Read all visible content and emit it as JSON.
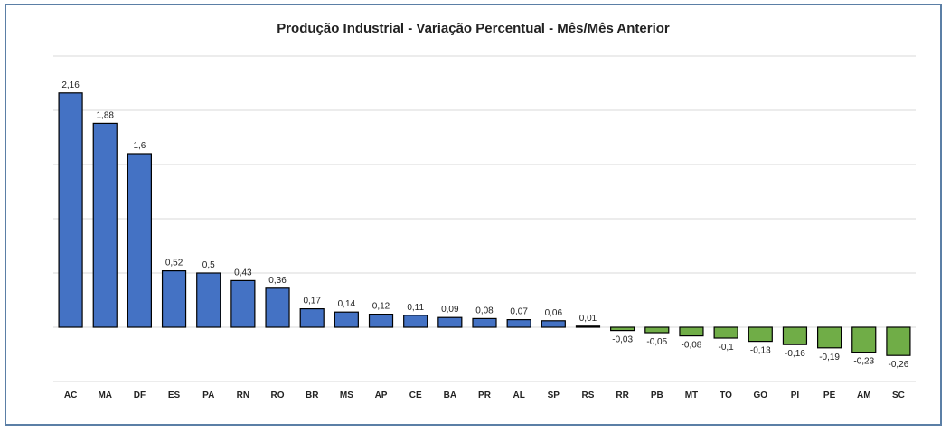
{
  "chart_data": {
    "type": "bar",
    "title": "Produção Industrial - Variação Percentual - Mês/Mês Anterior",
    "xlabel": "",
    "ylabel": "",
    "ylim": [
      -0.5,
      2.5
    ],
    "grid": true,
    "categories": [
      "AC",
      "MA",
      "DF",
      "ES",
      "PA",
      "RN",
      "RO",
      "BR",
      "MS",
      "AP",
      "CE",
      "BA",
      "PR",
      "AL",
      "SP",
      "RS",
      "RR",
      "PB",
      "MT",
      "TO",
      "GO",
      "PI",
      "PE",
      "AM",
      "SC"
    ],
    "values": [
      2.16,
      1.88,
      1.6,
      0.52,
      0.5,
      0.43,
      0.36,
      0.17,
      0.14,
      0.12,
      0.11,
      0.09,
      0.08,
      0.07,
      0.06,
      0.01,
      -0.03,
      -0.05,
      -0.08,
      -0.1,
      -0.13,
      -0.16,
      -0.19,
      -0.23,
      -0.26
    ],
    "labels": [
      "2,16",
      "1,88",
      "1,6",
      "0,52",
      "0,5",
      "0,43",
      "0,36",
      "0,17",
      "0,14",
      "0,12",
      "0,11",
      "0,09",
      "0,08",
      "0,07",
      "0,06",
      "0,01",
      "-0,03",
      "-0,05",
      "-0,08",
      "-0,1",
      "-0,13",
      "-0,16",
      "-0,19",
      "-0,23",
      "-0,26"
    ],
    "colors": {
      "positive": "#4472c4",
      "negative": "#70ad47",
      "grid": "#d9d9d9",
      "border": "#000000"
    }
  }
}
